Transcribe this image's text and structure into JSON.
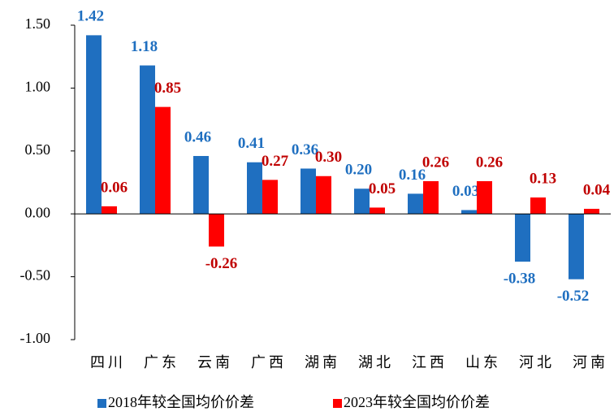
{
  "chart_data": {
    "type": "bar",
    "categories": [
      "四川",
      "广东",
      "云南",
      "广西",
      "湖南",
      "湖北",
      "江西",
      "山东",
      "河北",
      "河南"
    ],
    "series": [
      {
        "name": "2018年较全国均价价差",
        "color": "#1f6fc0",
        "values": [
          1.42,
          1.18,
          0.46,
          0.41,
          0.36,
          0.2,
          0.16,
          0.03,
          -0.38,
          -0.52
        ],
        "value_labels": [
          "1.42",
          "1.18",
          "0.46",
          "0.41",
          "0.36",
          "0.20",
          "0.16",
          "0.03",
          "-0.38",
          "-0.52"
        ]
      },
      {
        "name": "2023年较全国均价价差",
        "color": "#ff0000",
        "values": [
          0.06,
          0.85,
          -0.26,
          0.27,
          0.3,
          0.05,
          0.26,
          0.26,
          0.13,
          0.04
        ],
        "value_labels": [
          "0.06",
          "0.85",
          "-0.26",
          "0.27",
          "0.30",
          "0.05",
          "0.26",
          "0.26",
          "0.13",
          "0.04"
        ]
      }
    ],
    "label_colors": [
      "#1f6fc0",
      "#c00000"
    ],
    "ylim": [
      -1,
      1.5
    ],
    "yticks": [
      {
        "value": -1,
        "label": "-1.00"
      },
      {
        "value": -0.5,
        "label": "-0.50"
      },
      {
        "value": 0,
        "label": "0.00"
      },
      {
        "value": 0.5,
        "label": "0.50"
      },
      {
        "value": 1,
        "label": "1.00"
      },
      {
        "value": 1.5,
        "label": "1.50"
      }
    ],
    "grid": false,
    "legend": "bottom"
  }
}
